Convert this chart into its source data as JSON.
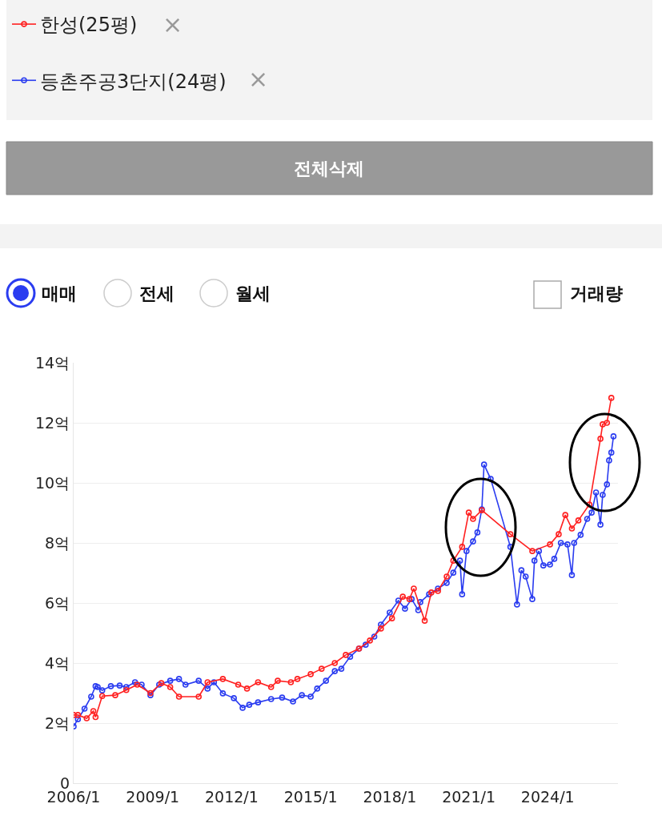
{
  "chart_data": {
    "type": "line",
    "series": [
      {
        "name": "한성(25평)",
        "color": "#ff2020",
        "x": [
          "2006-01",
          "2006-03",
          "2006-07",
          "2006-10",
          "2006-11",
          "2007-02",
          "2007-08",
          "2008-01",
          "2008-06",
          "2008-12",
          "2009-05",
          "2009-09",
          "2010-01",
          "2010-10",
          "2011-02",
          "2011-09",
          "2012-04",
          "2012-08",
          "2013-01",
          "2013-07",
          "2013-10",
          "2014-04",
          "2014-07",
          "2015-01",
          "2015-06",
          "2015-12",
          "2016-05",
          "2016-11",
          "2017-04",
          "2017-09",
          "2018-02",
          "2018-07",
          "2018-10",
          "2018-12",
          "2019-05",
          "2019-08",
          "2019-11",
          "2020-03",
          "2020-06",
          "2020-10",
          "2021-01",
          "2021-03",
          "2021-07",
          "2022-08",
          "2023-06",
          "2024-02",
          "2024-06",
          "2024-09",
          "2024-12",
          "2025-03",
          "2025-08",
          "2026-01",
          "2026-02",
          "2026-04",
          "2026-06"
        ],
        "values": [
          2.27,
          2.27,
          2.16,
          2.4,
          2.2,
          2.9,
          2.93,
          3.1,
          3.28,
          3.0,
          3.33,
          3.2,
          2.88,
          2.88,
          3.36,
          3.47,
          3.28,
          3.15,
          3.36,
          3.2,
          3.41,
          3.36,
          3.47,
          3.63,
          3.81,
          4.0,
          4.27,
          4.48,
          4.75,
          5.15,
          5.49,
          6.21,
          6.13,
          6.48,
          5.41,
          6.35,
          6.4,
          6.88,
          7.41,
          7.87,
          9.01,
          8.8,
          9.09,
          8.29,
          7.73,
          7.95,
          8.29,
          8.93,
          8.48,
          8.75,
          9.28,
          11.47,
          11.95,
          12.0,
          12.83
        ]
      },
      {
        "name": "등촌주공3단지(24평)",
        "color": "#2a3cf0",
        "x": [
          "2006-01",
          "2006-03",
          "2006-06",
          "2006-09",
          "2006-11",
          "2006-12",
          "2007-02",
          "2007-06",
          "2007-10",
          "2008-01",
          "2008-05",
          "2008-08",
          "2008-12",
          "2009-04",
          "2009-09",
          "2010-01",
          "2010-04",
          "2010-10",
          "2011-02",
          "2011-05",
          "2011-09",
          "2012-02",
          "2012-06",
          "2012-09",
          "2013-01",
          "2013-07",
          "2013-12",
          "2014-05",
          "2014-09",
          "2015-01",
          "2015-04",
          "2015-08",
          "2015-12",
          "2016-03",
          "2016-07",
          "2016-11",
          "2017-02",
          "2017-06",
          "2017-09",
          "2018-01",
          "2018-05",
          "2018-08",
          "2018-11",
          "2019-02",
          "2019-03",
          "2019-07",
          "2019-11",
          "2020-03",
          "2020-06",
          "2020-09",
          "2020-10",
          "2020-12",
          "2021-03",
          "2021-05",
          "2021-07",
          "2021-08",
          "2021-11",
          "2022-08",
          "2022-11",
          "2023-01",
          "2023-03",
          "2023-06",
          "2023-07",
          "2023-09",
          "2023-11",
          "2024-02",
          "2024-04",
          "2024-07",
          "2024-10",
          "2024-12",
          "2025-01",
          "2025-04",
          "2025-07",
          "2025-09",
          "2025-11",
          "2026-01",
          "2026-02",
          "2026-04",
          "2026-05",
          "2026-06",
          "2026-07"
        ],
        "values": [
          1.89,
          2.13,
          2.48,
          2.88,
          3.23,
          3.2,
          3.09,
          3.23,
          3.25,
          3.2,
          3.36,
          3.28,
          2.93,
          3.28,
          3.41,
          3.47,
          3.28,
          3.41,
          3.15,
          3.36,
          2.99,
          2.83,
          2.51,
          2.61,
          2.69,
          2.8,
          2.85,
          2.72,
          2.93,
          2.88,
          3.15,
          3.41,
          3.73,
          3.81,
          4.21,
          4.48,
          4.61,
          4.88,
          5.28,
          5.68,
          6.08,
          5.81,
          6.13,
          5.76,
          6.03,
          6.29,
          6.48,
          6.67,
          7.01,
          7.41,
          6.29,
          7.73,
          8.05,
          8.35,
          9.12,
          10.61,
          10.13,
          7.87,
          5.95,
          7.09,
          6.88,
          6.13,
          7.41,
          7.73,
          7.25,
          7.28,
          7.47,
          8.0,
          7.95,
          6.93,
          8.0,
          8.27,
          8.8,
          9.01,
          9.68,
          8.61,
          9.6,
          9.95,
          10.75,
          11.01,
          11.55
        ]
      }
    ],
    "xlim": [
      "2006-01",
      "2026-09"
    ],
    "xticks": [
      {
        "value": "2006-01",
        "label": "2006/1"
      },
      {
        "value": "2009-01",
        "label": "2009/1"
      },
      {
        "value": "2012-01",
        "label": "2012/1"
      },
      {
        "value": "2015-01",
        "label": "2015/1"
      },
      {
        "value": "2018-01",
        "label": "2018/1"
      },
      {
        "value": "2021-01",
        "label": "2021/1"
      },
      {
        "value": "2024-01",
        "label": "2024/1"
      }
    ],
    "ylim": [
      0,
      14
    ],
    "yticks": [
      0,
      {
        "value": 2,
        "label": "2억"
      },
      {
        "value": 4,
        "label": "4억"
      },
      {
        "value": 6,
        "label": "6억"
      },
      {
        "value": 8,
        "label": "8억"
      },
      {
        "value": 10,
        "label": "10억"
      },
      {
        "value": 12,
        "label": "12억"
      },
      {
        "value": 14,
        "label": "14억"
      }
    ],
    "grid": "y",
    "legend": "top left",
    "marker": "circle",
    "line_style": "solid",
    "annotations": [
      "×",
      "×",
      "전체삭제",
      "매매",
      "전세",
      "월세",
      "거래량"
    ]
  }
}
